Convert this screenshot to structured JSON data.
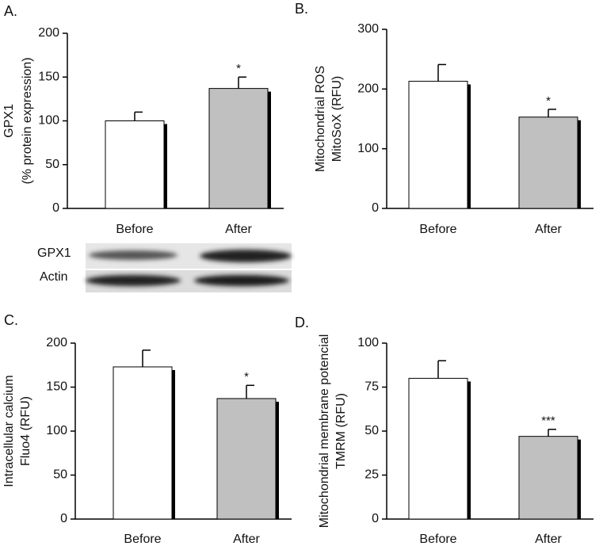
{
  "chart_data": [
    {
      "type": "bar",
      "panel": "A.",
      "ylabel": [
        "GPX1",
        "(% protein expression)"
      ],
      "categories": [
        "Before",
        "After"
      ],
      "values": [
        100,
        137
      ],
      "errors": [
        10,
        13
      ],
      "colors": [
        "#ffffff",
        "#c0c0c0"
      ],
      "significance": [
        null,
        "*"
      ],
      "ylim": [
        0,
        200
      ],
      "yticks": [
        0,
        50,
        100,
        150,
        200
      ],
      "blot": {
        "rows": [
          "GPX1",
          "Actin"
        ]
      }
    },
    {
      "type": "bar",
      "panel": "B.",
      "ylabel": [
        "Mitochondrial ROS",
        "MitoSoX (RFU)"
      ],
      "categories": [
        "Before",
        "After"
      ],
      "values": [
        213,
        153
      ],
      "errors": [
        28,
        13
      ],
      "colors": [
        "#ffffff",
        "#c0c0c0"
      ],
      "significance": [
        null,
        "*"
      ],
      "ylim": [
        0,
        300
      ],
      "yticks": [
        0,
        100,
        200,
        300
      ]
    },
    {
      "type": "bar",
      "panel": "C.",
      "ylabel": [
        "Intracellular calcium",
        "Fluo4 (RFU)"
      ],
      "categories": [
        "Before",
        "After"
      ],
      "values": [
        173,
        137
      ],
      "errors": [
        19,
        15
      ],
      "colors": [
        "#ffffff",
        "#c0c0c0"
      ],
      "significance": [
        null,
        "*"
      ],
      "ylim": [
        0,
        200
      ],
      "yticks": [
        0,
        50,
        100,
        150,
        200
      ]
    },
    {
      "type": "bar",
      "panel": "D.",
      "ylabel": [
        "Mitochondrial membrane potencial",
        "TMRM (RFU)"
      ],
      "categories": [
        "Before",
        "After"
      ],
      "values": [
        80,
        47
      ],
      "errors": [
        10,
        4
      ],
      "colors": [
        "#ffffff",
        "#c0c0c0"
      ],
      "significance": [
        null,
        "***"
      ],
      "ylim": [
        0,
        100
      ],
      "yticks": [
        0,
        25,
        50,
        75,
        100
      ]
    }
  ]
}
